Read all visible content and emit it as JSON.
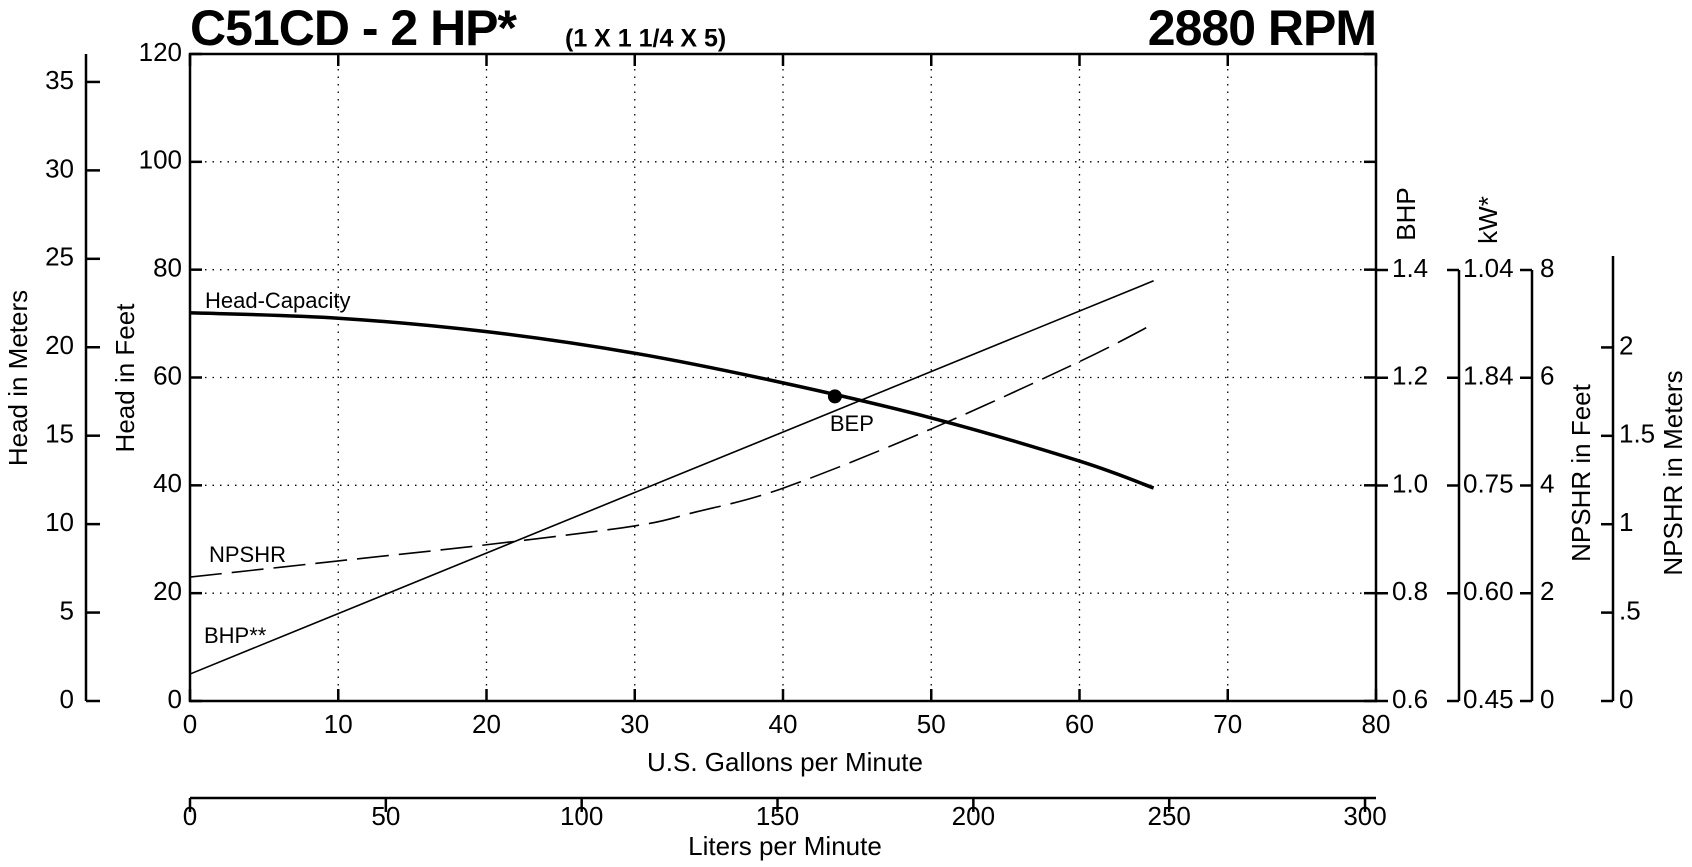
{
  "chart_data": {
    "type": "line",
    "title": "C51CD - 2 HP*",
    "subtitle": "(1 X 1 1/4 X 5)",
    "speed": "2880 RPM",
    "xlabel": "U.S. Gallons per Minute",
    "xlim": [
      0,
      80
    ],
    "xticks": [
      0,
      10,
      20,
      30,
      40,
      50,
      60,
      70,
      80
    ],
    "ylabel": "Head in Feet",
    "ylim": [
      0,
      120
    ],
    "yticks": [
      0,
      20,
      40,
      60,
      80,
      100,
      120
    ],
    "ylabel_meters": "Head in Meters",
    "ylim_meters": [
      0,
      36.58
    ],
    "yticks_meters": [
      0,
      5,
      10,
      15,
      20,
      25,
      30,
      35
    ],
    "x2label": "Liters per Minute",
    "x2lim": [
      0,
      302.8
    ],
    "x2ticks": [
      0,
      50,
      100,
      150,
      200,
      250,
      300
    ],
    "y2label": "BHP",
    "y2lim": [
      0.6,
      1.4
    ],
    "y2ticks": [
      0.6,
      0.8,
      {
        "value": 1,
        "label": "1.0"
      },
      1.2,
      1.4
    ],
    "kw_label": "kW*",
    "kw_tick_labels": [
      "0.45",
      "0.60",
      "0.75",
      "1.84",
      "1.04"
    ],
    "npshr_label": "NPSHR in Feet",
    "npshr_lim": [
      0,
      8
    ],
    "npshr_ticks": [
      0,
      2,
      4,
      6,
      8
    ],
    "npshr_m_label": "NPSHR in Meters",
    "npshr_m_lim": [
      0,
      2.438
    ],
    "npshr_m_ticks": [
      0,
      {
        "value": 0.5,
        "label": ".5"
      },
      1,
      1.5,
      2
    ],
    "grid": true,
    "series": [
      {
        "name": "Head-Capacity",
        "color": "#000000",
        "axis": "y",
        "linewidth": 3.5,
        "dashed": false,
        "x": [
          0,
          10,
          20,
          30,
          40,
          50,
          60,
          65
        ],
        "values": [
          72,
          71,
          68.5,
          64.5,
          59,
          52.5,
          44.5,
          39.5
        ]
      },
      {
        "name": "NPSHR",
        "color": "#000000",
        "axis": "npshr",
        "linewidth": 1.6,
        "dashed": true,
        "x": [
          0,
          10,
          20,
          30,
          34,
          40,
          50,
          60,
          65
        ],
        "values": [
          2.3,
          2.6,
          2.9,
          3.25,
          3.5,
          3.95,
          5.05,
          6.3,
          7.0
        ]
      },
      {
        "name": "BHP**",
        "color": "#000000",
        "axis": "y2",
        "linewidth": 1.6,
        "dashed": false,
        "x": [
          0,
          65
        ],
        "values": [
          0.65,
          1.38
        ]
      }
    ],
    "bep": {
      "label": "BEP",
      "x": 43.5,
      "y": 56.5
    }
  }
}
